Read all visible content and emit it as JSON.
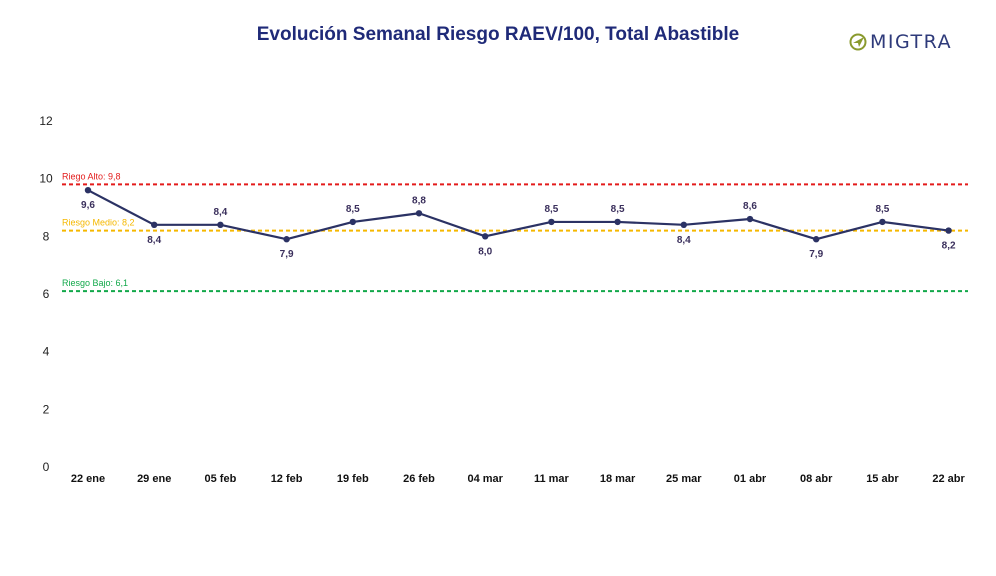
{
  "header": {
    "title": "Evolución Semanal Riesgo RAEV/100, Total Abastible",
    "logo_text": "MIGTRA",
    "accent": "#1f2a78",
    "logo_mark_color": "#8a9a2e"
  },
  "chart_data": {
    "type": "line",
    "title": "Evolución Semanal Riesgo RAEV/100, Total Abastible",
    "xlabel": "",
    "ylabel": "",
    "categories": [
      "22 ene",
      "29 ene",
      "05 feb",
      "12 feb",
      "19 feb",
      "26 feb",
      "04 mar",
      "11 mar",
      "18 mar",
      "25 mar",
      "01 abr",
      "08 abr",
      "15 abr",
      "22 abr"
    ],
    "series": [
      {
        "name": "",
        "color": "#2b3264",
        "values": [
          9.6,
          8.4,
          8.4,
          7.9,
          8.5,
          8.8,
          8.0,
          8.5,
          8.5,
          8.4,
          8.6,
          7.9,
          8.5,
          8.2
        ],
        "labels": [
          "9,6",
          "8,4",
          "8,4",
          "7,9",
          "8,5",
          "8,8",
          "8,0",
          "8,5",
          "8,5",
          "8,4",
          "8,6",
          "7,9",
          "8,5",
          "8,2"
        ],
        "label_position": [
          "below",
          "below",
          "above",
          "below",
          "above",
          "above",
          "below",
          "above",
          "above",
          "below",
          "above",
          "below",
          "above",
          "below"
        ]
      }
    ],
    "reference_lines": [
      {
        "label": "Riego Alto: 9,8",
        "value": 9.8,
        "color": "#e31b1b"
      },
      {
        "label": "Riesgo Medio: 8,2",
        "value": 8.2,
        "color": "#f5b800"
      },
      {
        "label": "Riesgo Bajo: 6,1",
        "value": 6.1,
        "color": "#12a84a"
      }
    ],
    "yticks": [
      "0",
      "2",
      "4",
      "6",
      "8",
      "10",
      "12"
    ],
    "ytick_values": [
      0,
      2,
      4,
      6,
      8,
      10,
      12
    ],
    "ylim": [
      0,
      12
    ],
    "grid": false,
    "legend": "none"
  }
}
